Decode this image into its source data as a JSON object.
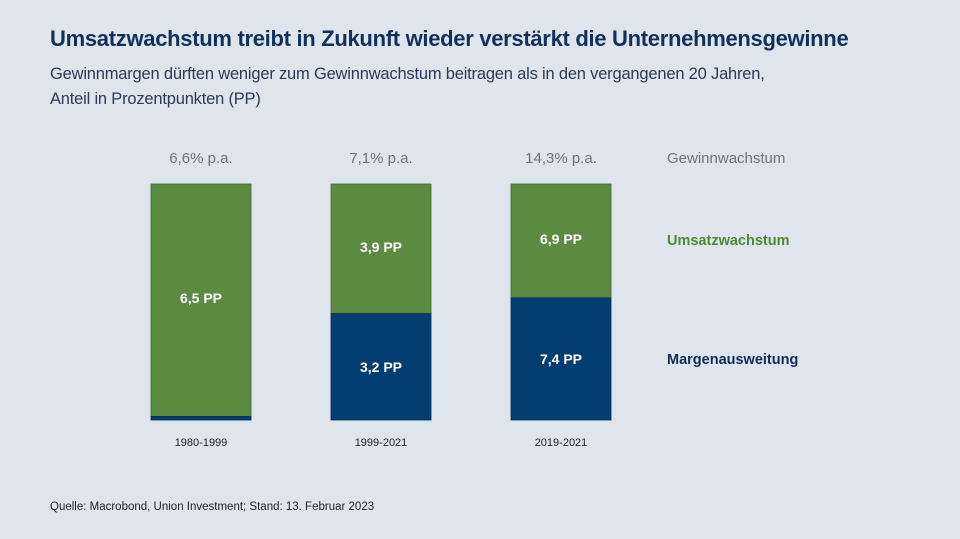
{
  "header": {
    "title": "Umsatzwachstum treibt in Zukunft wieder verstärkt die Unternehmensgewinne",
    "subtitle_line1": "Gewinnmargen dürften weniger zum Gewinnwachstum beitragen als in den vergangenen 20 Jahren,",
    "subtitle_line2": "Anteil in Prozentpunkten (PP)"
  },
  "source": "Quelle: Macrobond, Union Investment; Stand: 13. Februar 2023",
  "colors": {
    "green": "#5b8a41",
    "blue": "#043d71",
    "legend_total": "#6b7280",
    "legend_green": "#4f8a32",
    "legend_blue": "#0f2d57"
  },
  "chart_data": {
    "type": "bar",
    "stacked": true,
    "normalized": true,
    "title": "Umsatzwachstum treibt in Zukunft wieder verstärkt die Unternehmensgewinne",
    "categories": [
      "1980-1999",
      "1999-2021",
      "2019-2021"
    ],
    "totals": [
      6.6,
      7.1,
      14.3
    ],
    "total_labels": [
      "6,6% p.a.",
      "7,1% p.a.",
      "14,3% p.a."
    ],
    "series": [
      {
        "name": "Margenausweitung",
        "values": [
          0.1,
          3.2,
          7.4
        ],
        "labels": [
          "",
          "3,2 PP",
          "7,4 PP"
        ]
      },
      {
        "name": "Umsatzwachstum",
        "values": [
          6.5,
          3.9,
          6.9
        ],
        "labels": [
          "6,5 PP",
          "3,9 PP",
          "6,9 PP"
        ]
      }
    ],
    "legend": [
      "Gewinnwachstum",
      "Umsatzwachstum",
      "Margenausweitung"
    ],
    "legend_position": "right",
    "xlabel": "",
    "ylabel": "Prozentpunkte (PP)"
  }
}
